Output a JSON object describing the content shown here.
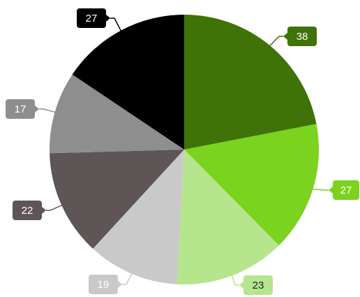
{
  "chart_data": {
    "type": "pie",
    "title": "",
    "legend": "none",
    "slices": [
      {
        "value": 38,
        "label": "38",
        "color": "#3f7207",
        "label_color": "#ffffff"
      },
      {
        "value": 27,
        "label": "27",
        "color": "#7bd21f",
        "label_color": "#ffffff"
      },
      {
        "value": 23,
        "label": "23",
        "color": "#b5e58c",
        "label_color": "#222222"
      },
      {
        "value": 19,
        "label": "19",
        "color": "#c9c9c9",
        "label_color": "#ffffff"
      },
      {
        "value": 22,
        "label": "22",
        "color": "#5e5557",
        "label_color": "#ffffff"
      },
      {
        "value": 17,
        "label": "17",
        "color": "#8e8e8e",
        "label_color": "#ffffff"
      },
      {
        "value": 27,
        "label": "27",
        "color": "#000000",
        "label_color": "#ffffff"
      }
    ]
  }
}
